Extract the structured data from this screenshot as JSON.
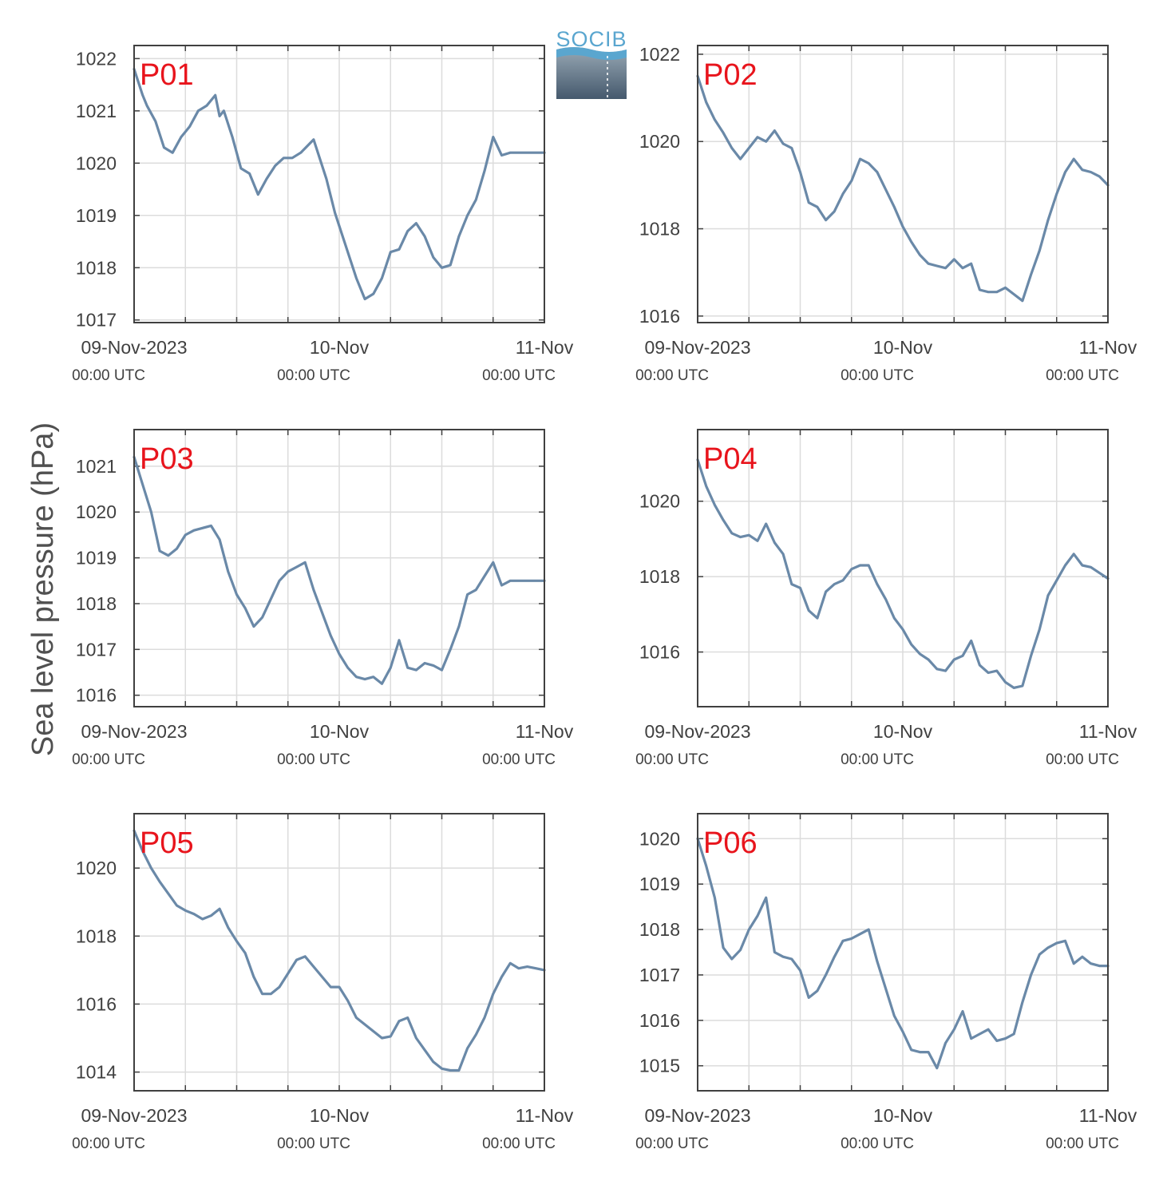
{
  "ylabel": "Sea level pressure (hPa)",
  "logo": {
    "text": "SOCIB",
    "accent": "#5aa6cf",
    "dark": "#45596d"
  },
  "colors": {
    "line": "#6a89a8",
    "label": "#e8141c",
    "grid": "#dcdcdc",
    "axis": "#404040"
  },
  "x_ticks": [
    {
      "label": "09-Nov-2023",
      "sub": "00:00 UTC",
      "hour": 0
    },
    {
      "label": "10-Nov",
      "sub": "00:00 UTC",
      "hour": 24
    },
    {
      "label": "11-Nov",
      "sub": "00:00 UTC",
      "hour": 48
    }
  ],
  "chart_data": [
    {
      "type": "line",
      "label": "P01",
      "xlim": [
        "09-Nov-2023 00:00",
        "11-Nov-2023 00:00"
      ],
      "ylim": [
        1016.95,
        1022.25
      ],
      "yticks": [
        1017,
        1018,
        1019,
        1020,
        1021,
        1022
      ],
      "hours": [
        0,
        1,
        1.5,
        2.5,
        3.5,
        4.5,
        5.5,
        6.5,
        7.5,
        8.5,
        9.5,
        10,
        10.5,
        11.5,
        12.5,
        13.5,
        14.5,
        15.5,
        16.5,
        17.5,
        18.5,
        19.5,
        21,
        22.5,
        23.5,
        25,
        26,
        27,
        28,
        29,
        30,
        31,
        32,
        33,
        34,
        35,
        36,
        37,
        38,
        39,
        40,
        41,
        42,
        43,
        44,
        45,
        46,
        47,
        48
      ],
      "values": [
        1021.8,
        1021.3,
        1021.1,
        1020.8,
        1020.3,
        1020.2,
        1020.5,
        1020.7,
        1021.0,
        1021.1,
        1021.3,
        1020.9,
        1021.0,
        1020.5,
        1019.9,
        1019.8,
        1019.4,
        1019.7,
        1019.95,
        1020.1,
        1020.1,
        1020.2,
        1020.45,
        1019.7,
        1019.05,
        1018.3,
        1017.8,
        1017.4,
        1017.5,
        1017.8,
        1018.3,
        1018.35,
        1018.7,
        1018.85,
        1018.6,
        1018.2,
        1018.0,
        1018.05,
        1018.6,
        1019.0,
        1019.3,
        1019.85,
        1020.5,
        1020.15,
        1020.2,
        1020.2,
        1020.2,
        1020.2,
        1020.2
      ]
    },
    {
      "type": "line",
      "label": "P02",
      "xlim": [
        "09-Nov-2023 00:00",
        "11-Nov-2023 00:00"
      ],
      "ylim": [
        1015.85,
        1022.2
      ],
      "yticks": [
        1016,
        1018,
        1020,
        1022
      ],
      "hours": [
        0,
        1,
        2,
        3,
        4,
        5,
        6,
        7,
        8,
        9,
        10,
        11,
        12,
        13,
        14,
        15,
        16,
        17,
        18,
        19,
        20,
        21,
        22,
        23,
        24,
        25,
        26,
        27,
        28,
        29,
        30,
        31,
        32,
        33,
        34,
        35,
        36,
        37,
        38,
        39,
        40,
        41,
        42,
        43,
        44,
        45,
        46,
        47,
        48
      ],
      "values": [
        1021.5,
        1020.9,
        1020.5,
        1020.2,
        1019.85,
        1019.6,
        1019.85,
        1020.1,
        1020.0,
        1020.25,
        1019.95,
        1019.85,
        1019.3,
        1018.6,
        1018.5,
        1018.2,
        1018.4,
        1018.8,
        1019.1,
        1019.6,
        1019.5,
        1019.3,
        1018.9,
        1018.5,
        1018.05,
        1017.7,
        1017.4,
        1017.2,
        1017.15,
        1017.1,
        1017.3,
        1017.1,
        1017.2,
        1016.6,
        1016.55,
        1016.55,
        1016.65,
        1016.5,
        1016.35,
        1016.95,
        1017.5,
        1018.2,
        1018.8,
        1019.3,
        1019.6,
        1019.35,
        1019.3,
        1019.2,
        1019.0
      ]
    },
    {
      "type": "line",
      "label": "P03",
      "xlim": [
        "09-Nov-2023 00:00",
        "11-Nov-2023 00:00"
      ],
      "ylim": [
        1015.75,
        1021.8
      ],
      "yticks": [
        1016,
        1017,
        1018,
        1019,
        1020,
        1021
      ],
      "hours": [
        0,
        1,
        2,
        3,
        4,
        5,
        6,
        7,
        8,
        9,
        10,
        11,
        12,
        13,
        14,
        15,
        16,
        17,
        18,
        19,
        20,
        21,
        22,
        23,
        24,
        25,
        26,
        27,
        28,
        29,
        30,
        31,
        32,
        33,
        34,
        35,
        36,
        37,
        38,
        39,
        40,
        41,
        42,
        43,
        44,
        45,
        46,
        47,
        48
      ],
      "values": [
        1021.2,
        1020.6,
        1020.0,
        1019.15,
        1019.05,
        1019.2,
        1019.5,
        1019.6,
        1019.65,
        1019.7,
        1019.4,
        1018.7,
        1018.2,
        1017.9,
        1017.5,
        1017.7,
        1018.1,
        1018.5,
        1018.7,
        1018.8,
        1018.9,
        1018.3,
        1017.8,
        1017.3,
        1016.9,
        1016.6,
        1016.4,
        1016.35,
        1016.4,
        1016.25,
        1016.6,
        1017.2,
        1016.6,
        1016.55,
        1016.7,
        1016.65,
        1016.55,
        1017.0,
        1017.5,
        1018.2,
        1018.3,
        1018.6,
        1018.9,
        1018.4,
        1018.5,
        1018.5,
        1018.5,
        1018.5,
        1018.5
      ]
    },
    {
      "type": "line",
      "label": "P04",
      "xlim": [
        "09-Nov-2023 00:00",
        "11-Nov-2023 00:00"
      ],
      "ylim": [
        1014.55,
        1021.9
      ],
      "yticks": [
        1016,
        1018,
        1020
      ],
      "hours": [
        0,
        1,
        2,
        3,
        4,
        5,
        6,
        7,
        8,
        9,
        10,
        11,
        12,
        13,
        14,
        15,
        16,
        17,
        18,
        19,
        20,
        21,
        22,
        23,
        24,
        25,
        26,
        27,
        28,
        29,
        30,
        31,
        32,
        33,
        34,
        35,
        36,
        37,
        38,
        39,
        40,
        41,
        42,
        43,
        44,
        45,
        46,
        47,
        48
      ],
      "values": [
        1021.1,
        1020.4,
        1019.9,
        1019.5,
        1019.15,
        1019.05,
        1019.1,
        1018.95,
        1019.4,
        1018.9,
        1018.6,
        1017.8,
        1017.7,
        1017.1,
        1016.9,
        1017.6,
        1017.8,
        1017.9,
        1018.2,
        1018.3,
        1018.3,
        1017.8,
        1017.4,
        1016.9,
        1016.6,
        1016.2,
        1015.95,
        1015.8,
        1015.55,
        1015.5,
        1015.8,
        1015.9,
        1016.3,
        1015.65,
        1015.45,
        1015.5,
        1015.2,
        1015.05,
        1015.1,
        1015.9,
        1016.6,
        1017.5,
        1017.9,
        1018.3,
        1018.6,
        1018.3,
        1018.25,
        1018.1,
        1017.95
      ]
    },
    {
      "type": "line",
      "label": "P05",
      "xlim": [
        "09-Nov-2023 00:00",
        "11-Nov-2023 00:00"
      ],
      "ylim": [
        1013.45,
        1021.6
      ],
      "yticks": [
        1014,
        1016,
        1018,
        1020
      ],
      "hours": [
        0,
        1,
        2,
        3,
        4,
        5,
        6,
        7,
        8,
        9,
        10,
        11,
        12,
        13,
        14,
        15,
        16,
        17,
        18,
        19,
        20,
        21,
        22,
        23,
        24,
        25,
        26,
        27,
        28,
        29,
        30,
        31,
        32,
        33,
        34,
        35,
        36,
        37,
        38,
        39,
        40,
        41,
        42,
        43,
        44,
        45,
        46,
        47,
        48
      ],
      "values": [
        1021.1,
        1020.5,
        1020.0,
        1019.6,
        1019.25,
        1018.9,
        1018.75,
        1018.65,
        1018.5,
        1018.6,
        1018.8,
        1018.25,
        1017.85,
        1017.5,
        1016.8,
        1016.3,
        1016.3,
        1016.5,
        1016.9,
        1017.3,
        1017.4,
        1017.1,
        1016.8,
        1016.5,
        1016.5,
        1016.1,
        1015.6,
        1015.4,
        1015.2,
        1015.0,
        1015.05,
        1015.5,
        1015.6,
        1015.0,
        1014.65,
        1014.3,
        1014.1,
        1014.05,
        1014.05,
        1014.7,
        1015.1,
        1015.6,
        1016.3,
        1016.8,
        1017.2,
        1017.05,
        1017.1,
        1017.05,
        1017.0
      ]
    },
    {
      "type": "line",
      "label": "P06",
      "xlim": [
        "09-Nov-2023 00:00",
        "11-Nov-2023 00:00"
      ],
      "ylim": [
        1014.45,
        1020.55
      ],
      "yticks": [
        1015,
        1016,
        1017,
        1018,
        1019,
        1020
      ],
      "hours": [
        0,
        1,
        2,
        3,
        4,
        5,
        6,
        7,
        8,
        9,
        10,
        11,
        12,
        13,
        14,
        15,
        16,
        17,
        18,
        19,
        20,
        21,
        22,
        23,
        24,
        25,
        26,
        27,
        28,
        29,
        30,
        31,
        32,
        33,
        34,
        35,
        36,
        37,
        38,
        39,
        40,
        41,
        42,
        43,
        44,
        45,
        46,
        47,
        48
      ],
      "values": [
        1020.0,
        1019.4,
        1018.7,
        1017.6,
        1017.35,
        1017.55,
        1018.0,
        1018.3,
        1018.7,
        1017.5,
        1017.4,
        1017.35,
        1017.1,
        1016.5,
        1016.65,
        1017.0,
        1017.4,
        1017.75,
        1017.8,
        1017.9,
        1018.0,
        1017.3,
        1016.7,
        1016.1,
        1015.75,
        1015.35,
        1015.3,
        1015.3,
        1014.95,
        1015.5,
        1015.8,
        1016.2,
        1015.6,
        1015.7,
        1015.8,
        1015.55,
        1015.6,
        1015.7,
        1016.4,
        1017.0,
        1017.45,
        1017.6,
        1017.7,
        1017.75,
        1017.25,
        1017.4,
        1017.25,
        1017.2,
        1017.2
      ]
    }
  ]
}
